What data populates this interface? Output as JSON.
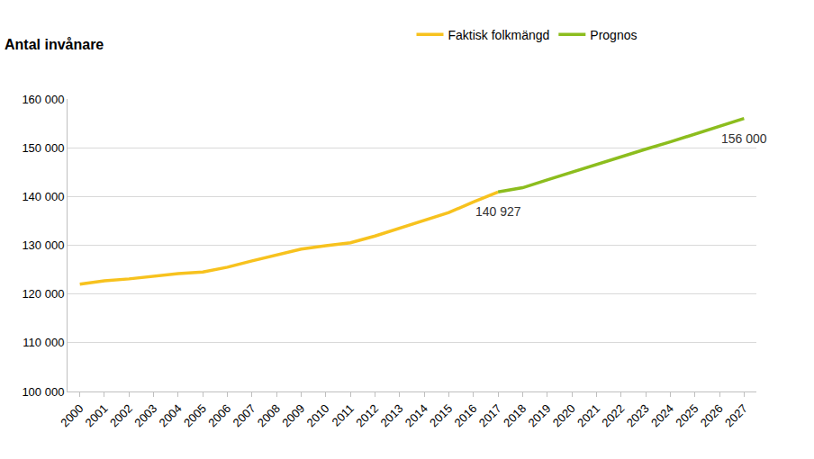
{
  "chart_data": {
    "type": "line",
    "ylabel": "Antal invånare",
    "categories": [
      "2000",
      "2001",
      "2002",
      "2003",
      "2004",
      "2005",
      "2006",
      "2007",
      "2008",
      "2009",
      "2010",
      "2011",
      "2012",
      "2013",
      "2014",
      "2015",
      "2016",
      "2017",
      "2018",
      "2019",
      "2020",
      "2021",
      "2022",
      "2023",
      "2024",
      "2025",
      "2026",
      "2027"
    ],
    "series": [
      {
        "name": "Faktisk folkmängd",
        "color": "#f7c21e",
        "values": [
          122000,
          122700,
          123100,
          123700,
          124200,
          124500,
          125500,
          126800,
          128000,
          129200,
          129900,
          130500,
          131900,
          133500,
          135000,
          136700,
          138900,
          140927,
          null,
          null,
          null,
          null,
          null,
          null,
          null,
          null,
          null,
          null
        ]
      },
      {
        "name": "Prognos",
        "color": "#8cbd1e",
        "values": [
          null,
          null,
          null,
          null,
          null,
          null,
          null,
          null,
          null,
          null,
          null,
          null,
          null,
          null,
          null,
          null,
          null,
          140927,
          141800,
          143400,
          145000,
          146500,
          148100,
          149700,
          151200,
          152800,
          154400,
          156000
        ]
      }
    ],
    "annotations": [
      {
        "text": "140 927",
        "category": "2017",
        "value": 140927
      },
      {
        "text": "156 000",
        "category": "2027",
        "value": 156000
      }
    ],
    "ylim": [
      100000,
      160000
    ],
    "yticks": [
      {
        "value": 100000,
        "label": "100 000"
      },
      {
        "value": 110000,
        "label": "110 000"
      },
      {
        "value": 120000,
        "label": "120 000"
      },
      {
        "value": 130000,
        "label": "130 000"
      },
      {
        "value": 140000,
        "label": "140 000"
      },
      {
        "value": 150000,
        "label": "150 000"
      },
      {
        "value": 160000,
        "label": "160 000"
      }
    ],
    "grid": true,
    "legend": "top right"
  }
}
